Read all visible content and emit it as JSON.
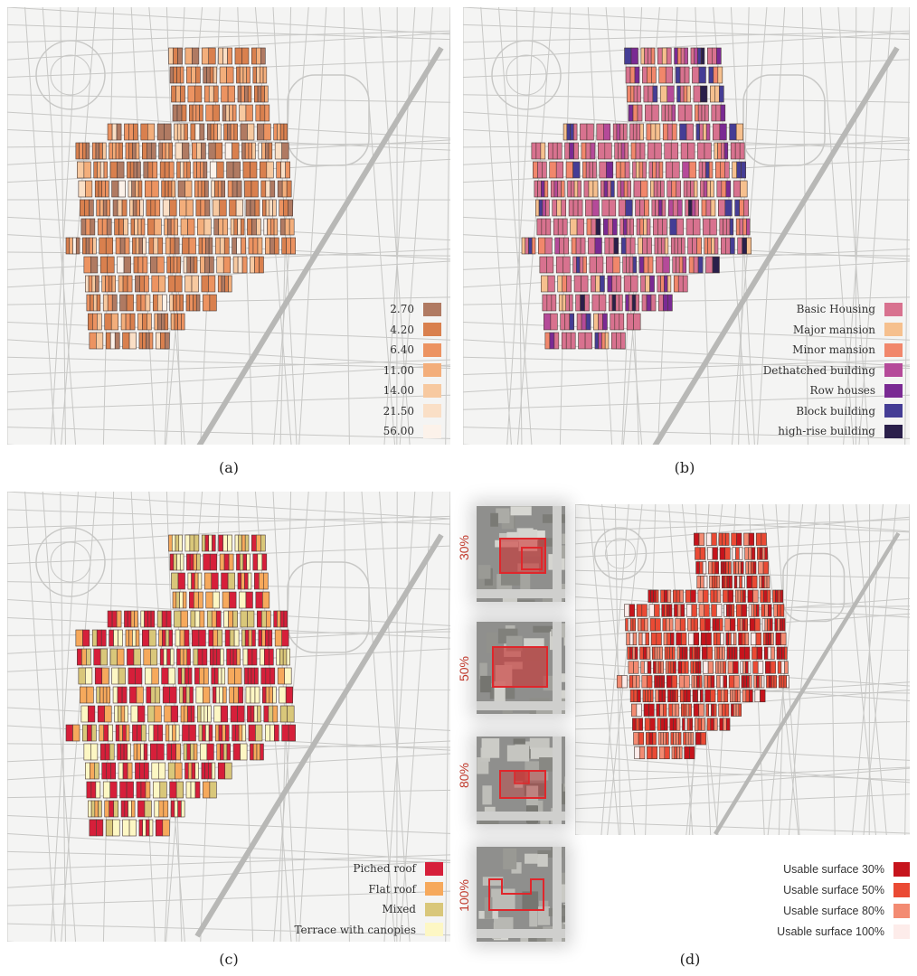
{
  "panels": {
    "a": {
      "caption": "(a)",
      "legend": [
        {
          "label": "2.70",
          "color": "#b07a62"
        },
        {
          "label": "4.20",
          "color": "#d9804e"
        },
        {
          "label": "6.40",
          "color": "#ec9361"
        },
        {
          "label": "11.00",
          "color": "#f3ae7b"
        },
        {
          "label": "14.00",
          "color": "#f7c9a0"
        },
        {
          "label": "21.50",
          "color": "#fadfc6"
        },
        {
          "label": "56.00",
          "color": "#fcf2ea"
        }
      ]
    },
    "b": {
      "caption": "(b)",
      "legend": [
        {
          "label": "Basic Housing",
          "color": "#d8728f"
        },
        {
          "label": "Major mansion",
          "color": "#f6c08e"
        },
        {
          "label": "Minor mansion",
          "color": "#f1876b"
        },
        {
          "label": "Dethatched building",
          "color": "#b54a99"
        },
        {
          "label": "Row houses",
          "color": "#7a2a93"
        },
        {
          "label": "Block building",
          "color": "#453d95"
        },
        {
          "label": "high-rise building",
          "color": "#2a1f4a"
        }
      ]
    },
    "c": {
      "caption": "(c)",
      "legend": [
        {
          "label": "Piched roof",
          "color": "#d61f3a"
        },
        {
          "label": "Flat roof",
          "color": "#f6a95c"
        },
        {
          "label": "Mixed",
          "color": "#d9c77a"
        },
        {
          "label": "Terrace with canopies",
          "color": "#fdf7c4"
        }
      ]
    },
    "d": {
      "caption": "(d)",
      "legend": [
        {
          "label": "Usable surface 30%",
          "color": "#c6141c"
        },
        {
          "label": "Usable surface 50%",
          "color": "#ea4a34"
        },
        {
          "label": "Usable surface 80%",
          "color": "#f38b72"
        },
        {
          "label": "Usable surface 100%",
          "color": "#fdecea"
        }
      ],
      "thumbnails": [
        {
          "label": "30%"
        },
        {
          "label": "50%"
        },
        {
          "label": "80%"
        },
        {
          "label": "100%"
        }
      ]
    }
  },
  "colors": {
    "background": "#f4f4f3",
    "streets": "#c8c8c6",
    "outline": "#4a3a35",
    "highlight": "#e0262b"
  }
}
